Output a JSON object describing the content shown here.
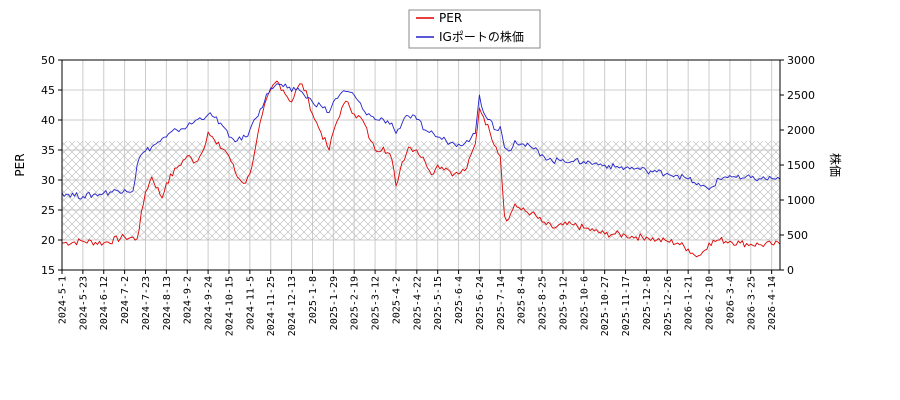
{
  "chart_data": {
    "type": "line",
    "y_left_label": "PER",
    "y_right_label": "株価",
    "y_left_range": [
      15,
      50
    ],
    "y_right_range": [
      0,
      3000
    ],
    "y_left_ticks": [
      "15",
      "20",
      "25",
      "30",
      "35",
      "40",
      "45",
      "50"
    ],
    "y_right_ticks": [
      "0",
      "500",
      "1000",
      "1500",
      "2000",
      "2500",
      "3000"
    ],
    "x_tick_labels": [
      "2024-5-1",
      "2024-5-23",
      "2024-6-12",
      "2024-7-2",
      "2024-7-23",
      "2024-8-13",
      "2024-9-2",
      "2024-9-24",
      "2024-10-15",
      "2024-11-5",
      "2024-11-25",
      "2024-12-13",
      "2025-1-8",
      "2025-1-29",
      "2025-2-19",
      "2025-3-12",
      "2025-4-2",
      "2025-4-22",
      "2025-5-15",
      "2025-6-4",
      "2025-6-24",
      "2025-7-14",
      "2025-8-4",
      "2025-8-25",
      "2025-9-12",
      "2025-10-6",
      "2025-10-27",
      "2025-11-17",
      "2025-12-8",
      "2025-12-26",
      "2026-1-21",
      "2026-2-10",
      "2026-3-4",
      "2026-3-25",
      "2026-4-14"
    ],
    "shaded_band_left": [
      20,
      36.5
    ],
    "grid": true,
    "legend_position": "top-center",
    "series": [
      {
        "name": "PER",
        "axis": "left",
        "color": "#dd0000",
        "x_index": [
          0,
          1,
          2,
          3,
          3.6,
          4,
          4.3,
          4.8,
          5,
          5.5,
          6,
          6.4,
          6.7,
          7,
          7.4,
          7.8,
          8,
          8.4,
          8.8,
          9,
          9.3,
          9.6,
          10,
          10.3,
          10.6,
          11,
          11.3,
          11.5,
          11.8,
          12,
          12.4,
          12.8,
          13,
          13.4,
          13.7,
          14,
          14.4,
          14.8,
          15,
          15.4,
          15.8,
          16,
          16.3,
          16.6,
          17,
          17.4,
          17.8,
          18,
          18.4,
          18.8,
          19,
          19.4,
          19.8,
          20,
          20.2,
          20.5,
          20.8,
          21,
          21.2,
          21.4,
          21.7,
          22,
          22.5,
          23,
          23.5,
          24,
          24.5,
          25,
          25.5,
          26,
          26.5,
          27,
          27.5,
          28,
          28.5,
          29,
          29.5,
          30,
          30.3,
          30.6,
          31,
          31.5,
          32,
          32.5,
          33,
          33.5,
          34,
          34.4
        ],
        "values": [
          19.5,
          19.8,
          19.5,
          20.5,
          20.2,
          28,
          30.5,
          27,
          29.5,
          32,
          34,
          33,
          34.5,
          38,
          36,
          35,
          34,
          30.5,
          29.5,
          31,
          36,
          41,
          45,
          46.5,
          45,
          43,
          45.5,
          46,
          43.5,
          41,
          38,
          35,
          38,
          42,
          43,
          41,
          40,
          36.5,
          35,
          35.5,
          33.5,
          29,
          33,
          35.5,
          35,
          33,
          31,
          32.5,
          32,
          31,
          31,
          32,
          36,
          42,
          40.5,
          38,
          35.5,
          34,
          24,
          23.5,
          26,
          25,
          24.5,
          23,
          22,
          22.5,
          22.5,
          22,
          21.5,
          21,
          21,
          20.8,
          20.5,
          20.5,
          20,
          19.8,
          19.5,
          18.5,
          17.5,
          17.5,
          19.5,
          20,
          19.8,
          19.5,
          19.3,
          19.2,
          19.3,
          19.3
        ]
      },
      {
        "name": "IGポートの株価",
        "axis": "right",
        "color": "#2222cc",
        "x_index": [
          0,
          1,
          2,
          3,
          3.4,
          3.6,
          3.8,
          4,
          4.5,
          5,
          5.5,
          6,
          6.5,
          7,
          7.3,
          7.6,
          8,
          8.4,
          8.8,
          9,
          9.5,
          10,
          10.4,
          10.8,
          11,
          11.3,
          11.6,
          12,
          12.4,
          12.8,
          13,
          13.3,
          13.6,
          14,
          14.4,
          14.8,
          15,
          15.4,
          15.8,
          16,
          16.3,
          16.6,
          17,
          17.4,
          17.8,
          18,
          18.4,
          18.8,
          19,
          19.4,
          19.8,
          20,
          20.2,
          20.5,
          20.8,
          21,
          21.2,
          21.4,
          21.7,
          22,
          22.5,
          23,
          23.5,
          24,
          24.5,
          25,
          25.5,
          26,
          26.5,
          27,
          27.5,
          28,
          28.5,
          29,
          29.5,
          30,
          30.3,
          30.6,
          31,
          31.5,
          32,
          32.5,
          33,
          33.5,
          34,
          34.4
        ],
        "values": [
          1100,
          1050,
          1100,
          1150,
          1130,
          1500,
          1650,
          1700,
          1800,
          1900,
          2000,
          2050,
          2150,
          2220,
          2180,
          2100,
          1900,
          1850,
          1900,
          2000,
          2300,
          2600,
          2650,
          2600,
          2550,
          2600,
          2500,
          2400,
          2350,
          2250,
          2400,
          2500,
          2550,
          2500,
          2300,
          2200,
          2150,
          2150,
          2100,
          1950,
          2100,
          2200,
          2150,
          2000,
          1950,
          1900,
          1850,
          1800,
          1800,
          1850,
          1950,
          2500,
          2250,
          2150,
          2000,
          2050,
          1750,
          1700,
          1850,
          1800,
          1750,
          1650,
          1550,
          1580,
          1550,
          1550,
          1520,
          1500,
          1470,
          1460,
          1450,
          1420,
          1400,
          1380,
          1350,
          1300,
          1250,
          1200,
          1150,
          1300,
          1350,
          1300,
          1320,
          1300,
          1310,
          1300
        ]
      }
    ]
  }
}
